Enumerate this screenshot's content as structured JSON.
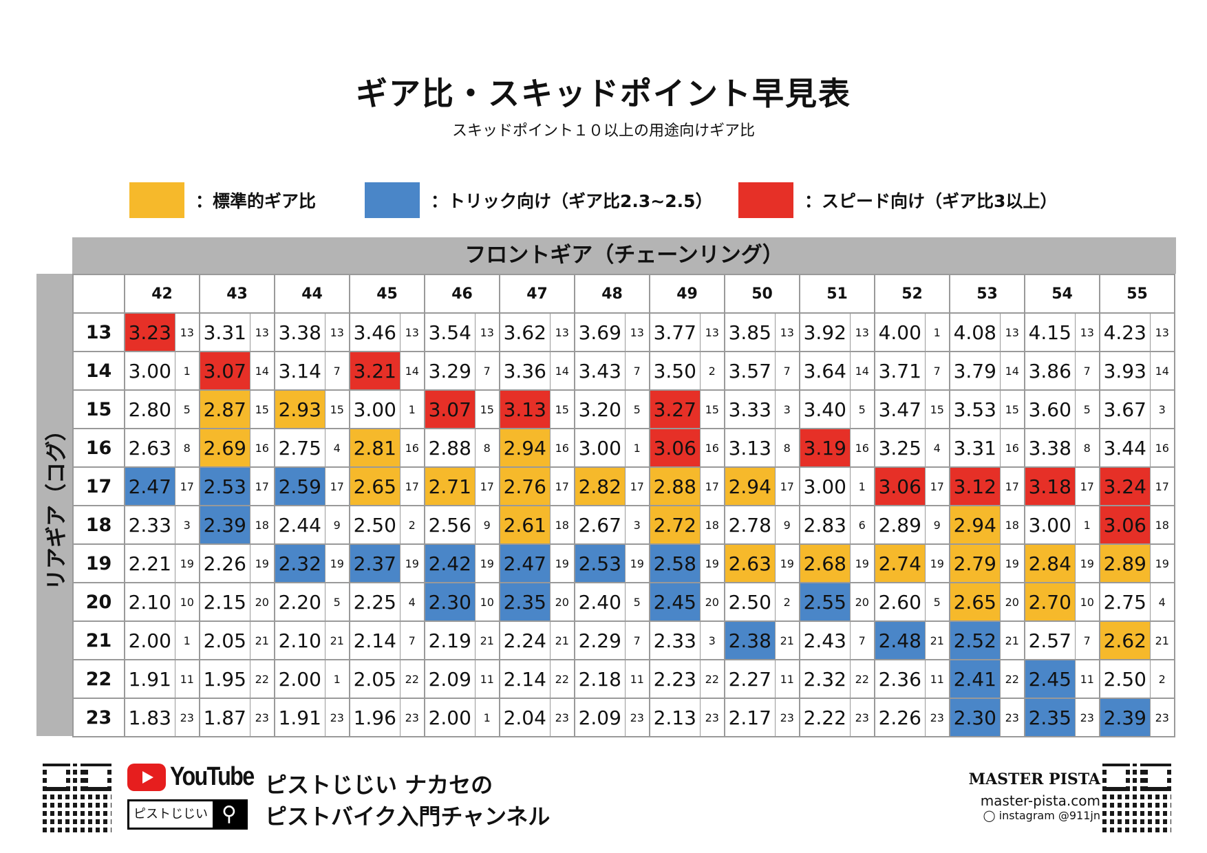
{
  "title": "ギア比・スキッドポイント早見表",
  "subtitle": "スキッドポイント１０以上の用途向けギア比",
  "colors": {
    "y": "#f6b92b",
    "b": "#4a86c8",
    "r": "#e63027"
  },
  "legend": [
    {
      "color": "y",
      "label": "：標準的ギア比"
    },
    {
      "color": "b",
      "label": "：トリック向け（ギア比2.3~2.5）"
    },
    {
      "color": "r",
      "label": "：スピード向け（ギア比3以上）"
    }
  ],
  "table": {
    "front_label": "フロントギア（チェーンリング）",
    "rear_label": "リアギア（コグ）",
    "fronts": [
      "42",
      "43",
      "44",
      "45",
      "46",
      "47",
      "48",
      "49",
      "50",
      "51",
      "52",
      "53",
      "54",
      "55"
    ],
    "rows": [
      {
        "rear": "13",
        "cells": [
          [
            "3.23",
            "13",
            "r"
          ],
          [
            "3.31",
            "13",
            ""
          ],
          [
            "3.38",
            "13",
            ""
          ],
          [
            "3.46",
            "13",
            ""
          ],
          [
            "3.54",
            "13",
            ""
          ],
          [
            "3.62",
            "13",
            ""
          ],
          [
            "3.69",
            "13",
            ""
          ],
          [
            "3.77",
            "13",
            ""
          ],
          [
            "3.85",
            "13",
            ""
          ],
          [
            "3.92",
            "13",
            ""
          ],
          [
            "4.00",
            "1",
            ""
          ],
          [
            "4.08",
            "13",
            ""
          ],
          [
            "4.15",
            "13",
            ""
          ],
          [
            "4.23",
            "13",
            ""
          ]
        ]
      },
      {
        "rear": "14",
        "cells": [
          [
            "3.00",
            "1",
            ""
          ],
          [
            "3.07",
            "14",
            "r"
          ],
          [
            "3.14",
            "7",
            ""
          ],
          [
            "3.21",
            "14",
            "r"
          ],
          [
            "3.29",
            "7",
            ""
          ],
          [
            "3.36",
            "14",
            ""
          ],
          [
            "3.43",
            "7",
            ""
          ],
          [
            "3.50",
            "2",
            ""
          ],
          [
            "3.57",
            "7",
            ""
          ],
          [
            "3.64",
            "14",
            ""
          ],
          [
            "3.71",
            "7",
            ""
          ],
          [
            "3.79",
            "14",
            ""
          ],
          [
            "3.86",
            "7",
            ""
          ],
          [
            "3.93",
            "14",
            ""
          ]
        ]
      },
      {
        "rear": "15",
        "cells": [
          [
            "2.80",
            "5",
            ""
          ],
          [
            "2.87",
            "15",
            "y"
          ],
          [
            "2.93",
            "15",
            "y"
          ],
          [
            "3.00",
            "1",
            ""
          ],
          [
            "3.07",
            "15",
            "r"
          ],
          [
            "3.13",
            "15",
            "r"
          ],
          [
            "3.20",
            "5",
            ""
          ],
          [
            "3.27",
            "15",
            "r"
          ],
          [
            "3.33",
            "3",
            ""
          ],
          [
            "3.40",
            "5",
            ""
          ],
          [
            "3.47",
            "15",
            ""
          ],
          [
            "3.53",
            "15",
            ""
          ],
          [
            "3.60",
            "5",
            ""
          ],
          [
            "3.67",
            "3",
            ""
          ]
        ]
      },
      {
        "rear": "16",
        "cells": [
          [
            "2.63",
            "8",
            ""
          ],
          [
            "2.69",
            "16",
            "y"
          ],
          [
            "2.75",
            "4",
            ""
          ],
          [
            "2.81",
            "16",
            "y"
          ],
          [
            "2.88",
            "8",
            ""
          ],
          [
            "2.94",
            "16",
            "y"
          ],
          [
            "3.00",
            "1",
            ""
          ],
          [
            "3.06",
            "16",
            "r"
          ],
          [
            "3.13",
            "8",
            ""
          ],
          [
            "3.19",
            "16",
            "r"
          ],
          [
            "3.25",
            "4",
            ""
          ],
          [
            "3.31",
            "16",
            ""
          ],
          [
            "3.38",
            "8",
            ""
          ],
          [
            "3.44",
            "16",
            ""
          ]
        ]
      },
      {
        "rear": "17",
        "cells": [
          [
            "2.47",
            "17",
            "b"
          ],
          [
            "2.53",
            "17",
            "b"
          ],
          [
            "2.59",
            "17",
            "b"
          ],
          [
            "2.65",
            "17",
            "y"
          ],
          [
            "2.71",
            "17",
            "y"
          ],
          [
            "2.76",
            "17",
            "y"
          ],
          [
            "2.82",
            "17",
            "y"
          ],
          [
            "2.88",
            "17",
            "y"
          ],
          [
            "2.94",
            "17",
            "y"
          ],
          [
            "3.00",
            "1",
            ""
          ],
          [
            "3.06",
            "17",
            "r"
          ],
          [
            "3.12",
            "17",
            "r"
          ],
          [
            "3.18",
            "17",
            "r"
          ],
          [
            "3.24",
            "17",
            "r"
          ]
        ]
      },
      {
        "rear": "18",
        "cells": [
          [
            "2.33",
            "3",
            ""
          ],
          [
            "2.39",
            "18",
            "b"
          ],
          [
            "2.44",
            "9",
            ""
          ],
          [
            "2.50",
            "2",
            ""
          ],
          [
            "2.56",
            "9",
            ""
          ],
          [
            "2.61",
            "18",
            "y"
          ],
          [
            "2.67",
            "3",
            ""
          ],
          [
            "2.72",
            "18",
            "y"
          ],
          [
            "2.78",
            "9",
            ""
          ],
          [
            "2.83",
            "6",
            ""
          ],
          [
            "2.89",
            "9",
            ""
          ],
          [
            "2.94",
            "18",
            "y"
          ],
          [
            "3.00",
            "1",
            ""
          ],
          [
            "3.06",
            "18",
            "r"
          ]
        ]
      },
      {
        "rear": "19",
        "cells": [
          [
            "2.21",
            "19",
            ""
          ],
          [
            "2.26",
            "19",
            ""
          ],
          [
            "2.32",
            "19",
            "b"
          ],
          [
            "2.37",
            "19",
            "b"
          ],
          [
            "2.42",
            "19",
            "b"
          ],
          [
            "2.47",
            "19",
            "b"
          ],
          [
            "2.53",
            "19",
            "b"
          ],
          [
            "2.58",
            "19",
            "b"
          ],
          [
            "2.63",
            "19",
            "y"
          ],
          [
            "2.68",
            "19",
            "y"
          ],
          [
            "2.74",
            "19",
            "y"
          ],
          [
            "2.79",
            "19",
            "y"
          ],
          [
            "2.84",
            "19",
            "y"
          ],
          [
            "2.89",
            "19",
            "y"
          ]
        ]
      },
      {
        "rear": "20",
        "cells": [
          [
            "2.10",
            "10",
            ""
          ],
          [
            "2.15",
            "20",
            ""
          ],
          [
            "2.20",
            "5",
            ""
          ],
          [
            "2.25",
            "4",
            ""
          ],
          [
            "2.30",
            "10",
            "b"
          ],
          [
            "2.35",
            "20",
            "b"
          ],
          [
            "2.40",
            "5",
            ""
          ],
          [
            "2.45",
            "20",
            "b"
          ],
          [
            "2.50",
            "2",
            ""
          ],
          [
            "2.55",
            "20",
            "b"
          ],
          [
            "2.60",
            "5",
            ""
          ],
          [
            "2.65",
            "20",
            "y"
          ],
          [
            "2.70",
            "10",
            "y"
          ],
          [
            "2.75",
            "4",
            ""
          ]
        ]
      },
      {
        "rear": "21",
        "cells": [
          [
            "2.00",
            "1",
            ""
          ],
          [
            "2.05",
            "21",
            ""
          ],
          [
            "2.10",
            "21",
            ""
          ],
          [
            "2.14",
            "7",
            ""
          ],
          [
            "2.19",
            "21",
            ""
          ],
          [
            "2.24",
            "21",
            ""
          ],
          [
            "2.29",
            "7",
            ""
          ],
          [
            "2.33",
            "3",
            ""
          ],
          [
            "2.38",
            "21",
            "b"
          ],
          [
            "2.43",
            "7",
            ""
          ],
          [
            "2.48",
            "21",
            "b"
          ],
          [
            "2.52",
            "21",
            "b"
          ],
          [
            "2.57",
            "7",
            ""
          ],
          [
            "2.62",
            "21",
            "y"
          ]
        ]
      },
      {
        "rear": "22",
        "cells": [
          [
            "1.91",
            "11",
            ""
          ],
          [
            "1.95",
            "22",
            ""
          ],
          [
            "2.00",
            "1",
            ""
          ],
          [
            "2.05",
            "22",
            ""
          ],
          [
            "2.09",
            "11",
            ""
          ],
          [
            "2.14",
            "22",
            ""
          ],
          [
            "2.18",
            "11",
            ""
          ],
          [
            "2.23",
            "22",
            ""
          ],
          [
            "2.27",
            "11",
            ""
          ],
          [
            "2.32",
            "22",
            ""
          ],
          [
            "2.36",
            "11",
            ""
          ],
          [
            "2.41",
            "22",
            "b"
          ],
          [
            "2.45",
            "11",
            "b"
          ],
          [
            "2.50",
            "2",
            ""
          ]
        ]
      },
      {
        "rear": "23",
        "cells": [
          [
            "1.83",
            "23",
            ""
          ],
          [
            "1.87",
            "23",
            ""
          ],
          [
            "1.91",
            "23",
            ""
          ],
          [
            "1.96",
            "23",
            ""
          ],
          [
            "2.00",
            "1",
            ""
          ],
          [
            "2.04",
            "23",
            ""
          ],
          [
            "2.09",
            "23",
            ""
          ],
          [
            "2.13",
            "23",
            ""
          ],
          [
            "2.17",
            "23",
            ""
          ],
          [
            "2.22",
            "23",
            ""
          ],
          [
            "2.26",
            "23",
            ""
          ],
          [
            "2.30",
            "23",
            "b"
          ],
          [
            "2.35",
            "23",
            "b"
          ],
          [
            "2.39",
            "23",
            "b"
          ]
        ]
      }
    ]
  },
  "footer": {
    "youtube": "YouTube",
    "search_text": "ピストじじい",
    "search_icon": "magnifier-icon",
    "channel_line1": "ピストじじい ナカセの",
    "channel_line2": "ピストバイク入門チャンネル",
    "brand": "MASTER PISTA",
    "site": "master-pista.com",
    "instagram": "instagram @911jn"
  }
}
